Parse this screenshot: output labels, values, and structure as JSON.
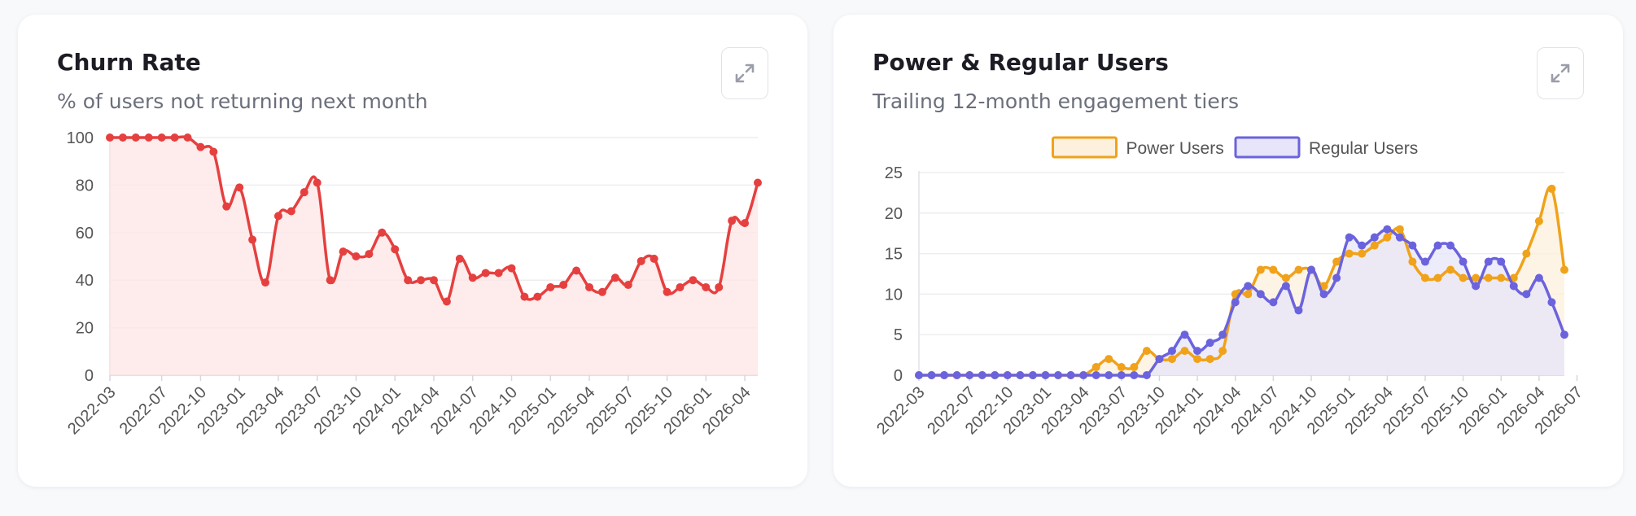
{
  "cards": [
    {
      "title": "Churn Rate",
      "subtitle": "% of users not returning next month",
      "expand_icon": "expand-icon"
    },
    {
      "title": "Power & Regular Users",
      "subtitle": "Trailing 12-month engagement tiers",
      "expand_icon": "expand-icon"
    }
  ],
  "chart_data": [
    {
      "type": "area",
      "title": "Churn Rate",
      "subtitle": "% of users not returning next month",
      "xlabel": "",
      "ylabel": "",
      "ylim": [
        0,
        100
      ],
      "yticks": [
        0,
        20,
        40,
        60,
        80,
        100
      ],
      "grid": true,
      "x_tick_labels": [
        "2022-03",
        "2022-07",
        "2022-10",
        "2023-01",
        "2023-04",
        "2023-07",
        "2023-10",
        "2024-01",
        "2024-04",
        "2024-07",
        "2024-10",
        "2025-01",
        "2025-04",
        "2025-07",
        "2025-10",
        "2026-01",
        "2026-04"
      ],
      "x_start": "2022-03",
      "series": [
        {
          "color": "#e5403f",
          "fill": "#fde4e4",
          "values": [
            100,
            100,
            100,
            100,
            100,
            100,
            100,
            96,
            94,
            71,
            79,
            57,
            39,
            67,
            69,
            77,
            81,
            40,
            52,
            50,
            51,
            60,
            53,
            40,
            40,
            40,
            31,
            49,
            41,
            43,
            43,
            45,
            33,
            33,
            37,
            38,
            44,
            37,
            35,
            41,
            38,
            48,
            49,
            35,
            37,
            40,
            37,
            37,
            65,
            64,
            81
          ]
        }
      ]
    },
    {
      "type": "line",
      "title": "Power & Regular Users",
      "subtitle": "Trailing 12-month engagement tiers",
      "xlabel": "",
      "ylabel": "",
      "ylim": [
        0,
        25
      ],
      "yticks": [
        0,
        5,
        10,
        15,
        20,
        25
      ],
      "grid": true,
      "legend": "top-center",
      "x_tick_labels": [
        "2022-03",
        "2022-07",
        "2022-10",
        "2023-01",
        "2023-04",
        "2023-07",
        "2023-10",
        "2024-01",
        "2024-04",
        "2024-07",
        "2024-10",
        "2025-01",
        "2025-04",
        "2025-07",
        "2025-10",
        "2026-01",
        "2026-04",
        "2026-07"
      ],
      "x_start": "2022-03",
      "series": [
        {
          "name": "Power Users",
          "color": "#f0a21a",
          "fill": "#fdf0dc",
          "values": [
            0,
            0,
            0,
            0,
            0,
            0,
            0,
            0,
            0,
            0,
            0,
            0,
            0,
            0,
            1,
            2,
            1,
            1,
            3,
            2,
            2,
            3,
            2,
            2,
            3,
            10,
            10,
            13,
            13,
            12,
            13,
            13,
            11,
            14,
            15,
            15,
            16,
            17,
            18,
            14,
            12,
            12,
            13,
            12,
            12,
            12,
            12,
            12,
            15,
            19,
            23,
            13
          ]
        },
        {
          "name": "Regular Users",
          "color": "#6b63dd",
          "fill": "#e6e5f9",
          "values": [
            0,
            0,
            0,
            0,
            0,
            0,
            0,
            0,
            0,
            0,
            0,
            0,
            0,
            0,
            0,
            0,
            0,
            0,
            0,
            2,
            3,
            5,
            3,
            4,
            5,
            9,
            11,
            10,
            9,
            11,
            8,
            13,
            10,
            12,
            17,
            16,
            17,
            18,
            17,
            16,
            14,
            16,
            16,
            14,
            11,
            14,
            14,
            11,
            10,
            12,
            9,
            5
          ]
        }
      ]
    }
  ]
}
